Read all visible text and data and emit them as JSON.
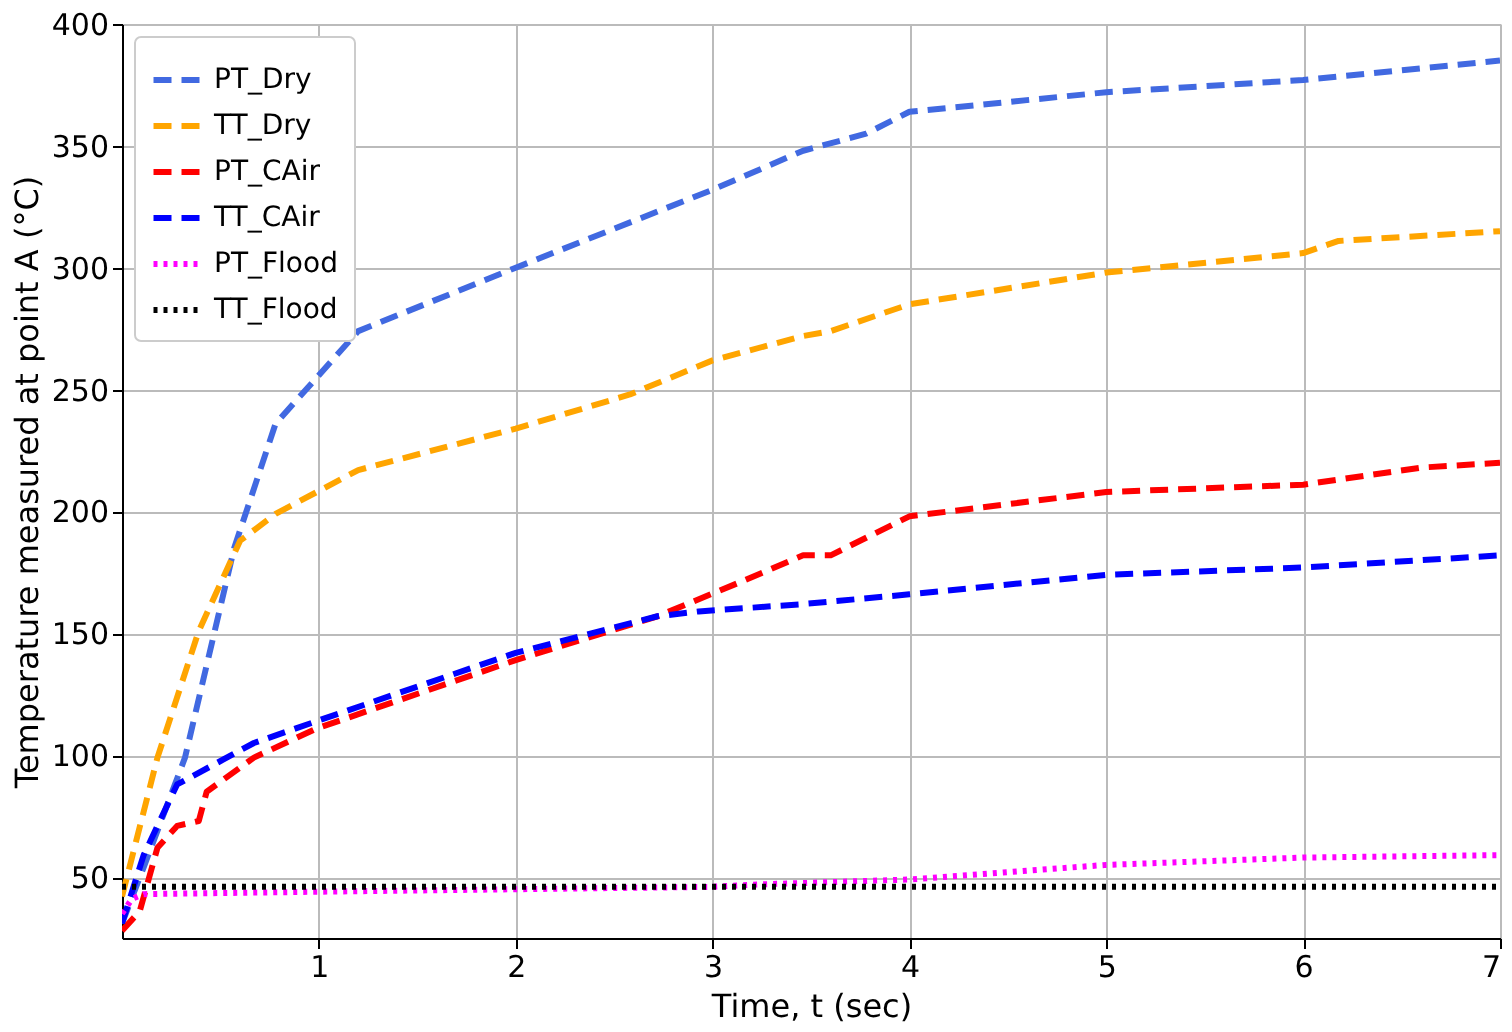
{
  "chart_data": {
    "type": "line",
    "xlabel": "Time, t (sec)",
    "ylabel": "Temperature measured at point A (°C)",
    "xlim": [
      0,
      7
    ],
    "ylim": [
      25,
      400
    ],
    "xticks": [
      1,
      2,
      3,
      4,
      5,
      6,
      7
    ],
    "yticks": [
      50,
      100,
      150,
      200,
      250,
      300,
      350,
      400
    ],
    "grid": true,
    "legend": "top left",
    "marker": "none",
    "series": [
      {
        "name": "PT_Dry",
        "color": "#4169e1",
        "line_style": "dashed",
        "x": [
          0,
          0.11,
          0.32,
          0.57,
          0.78,
          1.2,
          2.0,
          3.0,
          3.46,
          3.78,
          4,
          5,
          6,
          7
        ],
        "values": [
          31,
          54,
          99,
          185,
          236,
          274,
          300,
          332,
          348,
          355,
          364,
          372,
          377,
          385
        ]
      },
      {
        "name": "TT_Dry",
        "color": "#ffa500",
        "line_style": "dashed",
        "x": [
          0,
          0.18,
          0.39,
          0.6,
          0.78,
          1.2,
          2.0,
          2.58,
          3.0,
          3.46,
          3.6,
          4,
          5,
          6,
          6.18,
          7
        ],
        "values": [
          42,
          99,
          151,
          188,
          199,
          217,
          234,
          248,
          262,
          272,
          274,
          285,
          298,
          306,
          311,
          315
        ]
      },
      {
        "name": "PT_CAir",
        "color": "#ff0000",
        "line_style": "dashed",
        "x": [
          0,
          0.09,
          0.18,
          0.28,
          0.39,
          0.43,
          0.67,
          0.99,
          2.0,
          2.72,
          3.14,
          3.46,
          3.6,
          4,
          5,
          6,
          6.6,
          7
        ],
        "values": [
          28,
          36,
          62,
          71,
          73,
          85,
          99,
          111,
          139,
          157,
          171,
          182,
          182,
          198,
          208,
          211,
          218,
          220
        ]
      },
      {
        "name": "TT_CAir",
        "color": "#0000ff",
        "line_style": "dashed",
        "x": [
          0,
          0.11,
          0.28,
          0.67,
          0.99,
          2.0,
          2.72,
          2.93,
          3.46,
          4,
          5,
          6,
          7
        ],
        "values": [
          31,
          59,
          88,
          105,
          114,
          142,
          157,
          159,
          162,
          166,
          174,
          177,
          182
        ]
      },
      {
        "name": "PT_Flood",
        "color": "#ff00ff",
        "line_style": "dotted",
        "x": [
          0,
          0.05,
          0.11,
          1,
          2,
          3,
          3.25,
          4,
          5,
          6,
          7
        ],
        "values": [
          35,
          41,
          43,
          44,
          45,
          46,
          47,
          49,
          55,
          58,
          59
        ]
      },
      {
        "name": "TT_Flood",
        "color": "#000000",
        "line_style": "dotted",
        "x": [
          0,
          0.1,
          1,
          2,
          3,
          4,
          5,
          6,
          7
        ],
        "values": [
          46,
          46,
          46,
          46,
          46,
          46,
          46,
          46,
          46
        ]
      }
    ]
  }
}
